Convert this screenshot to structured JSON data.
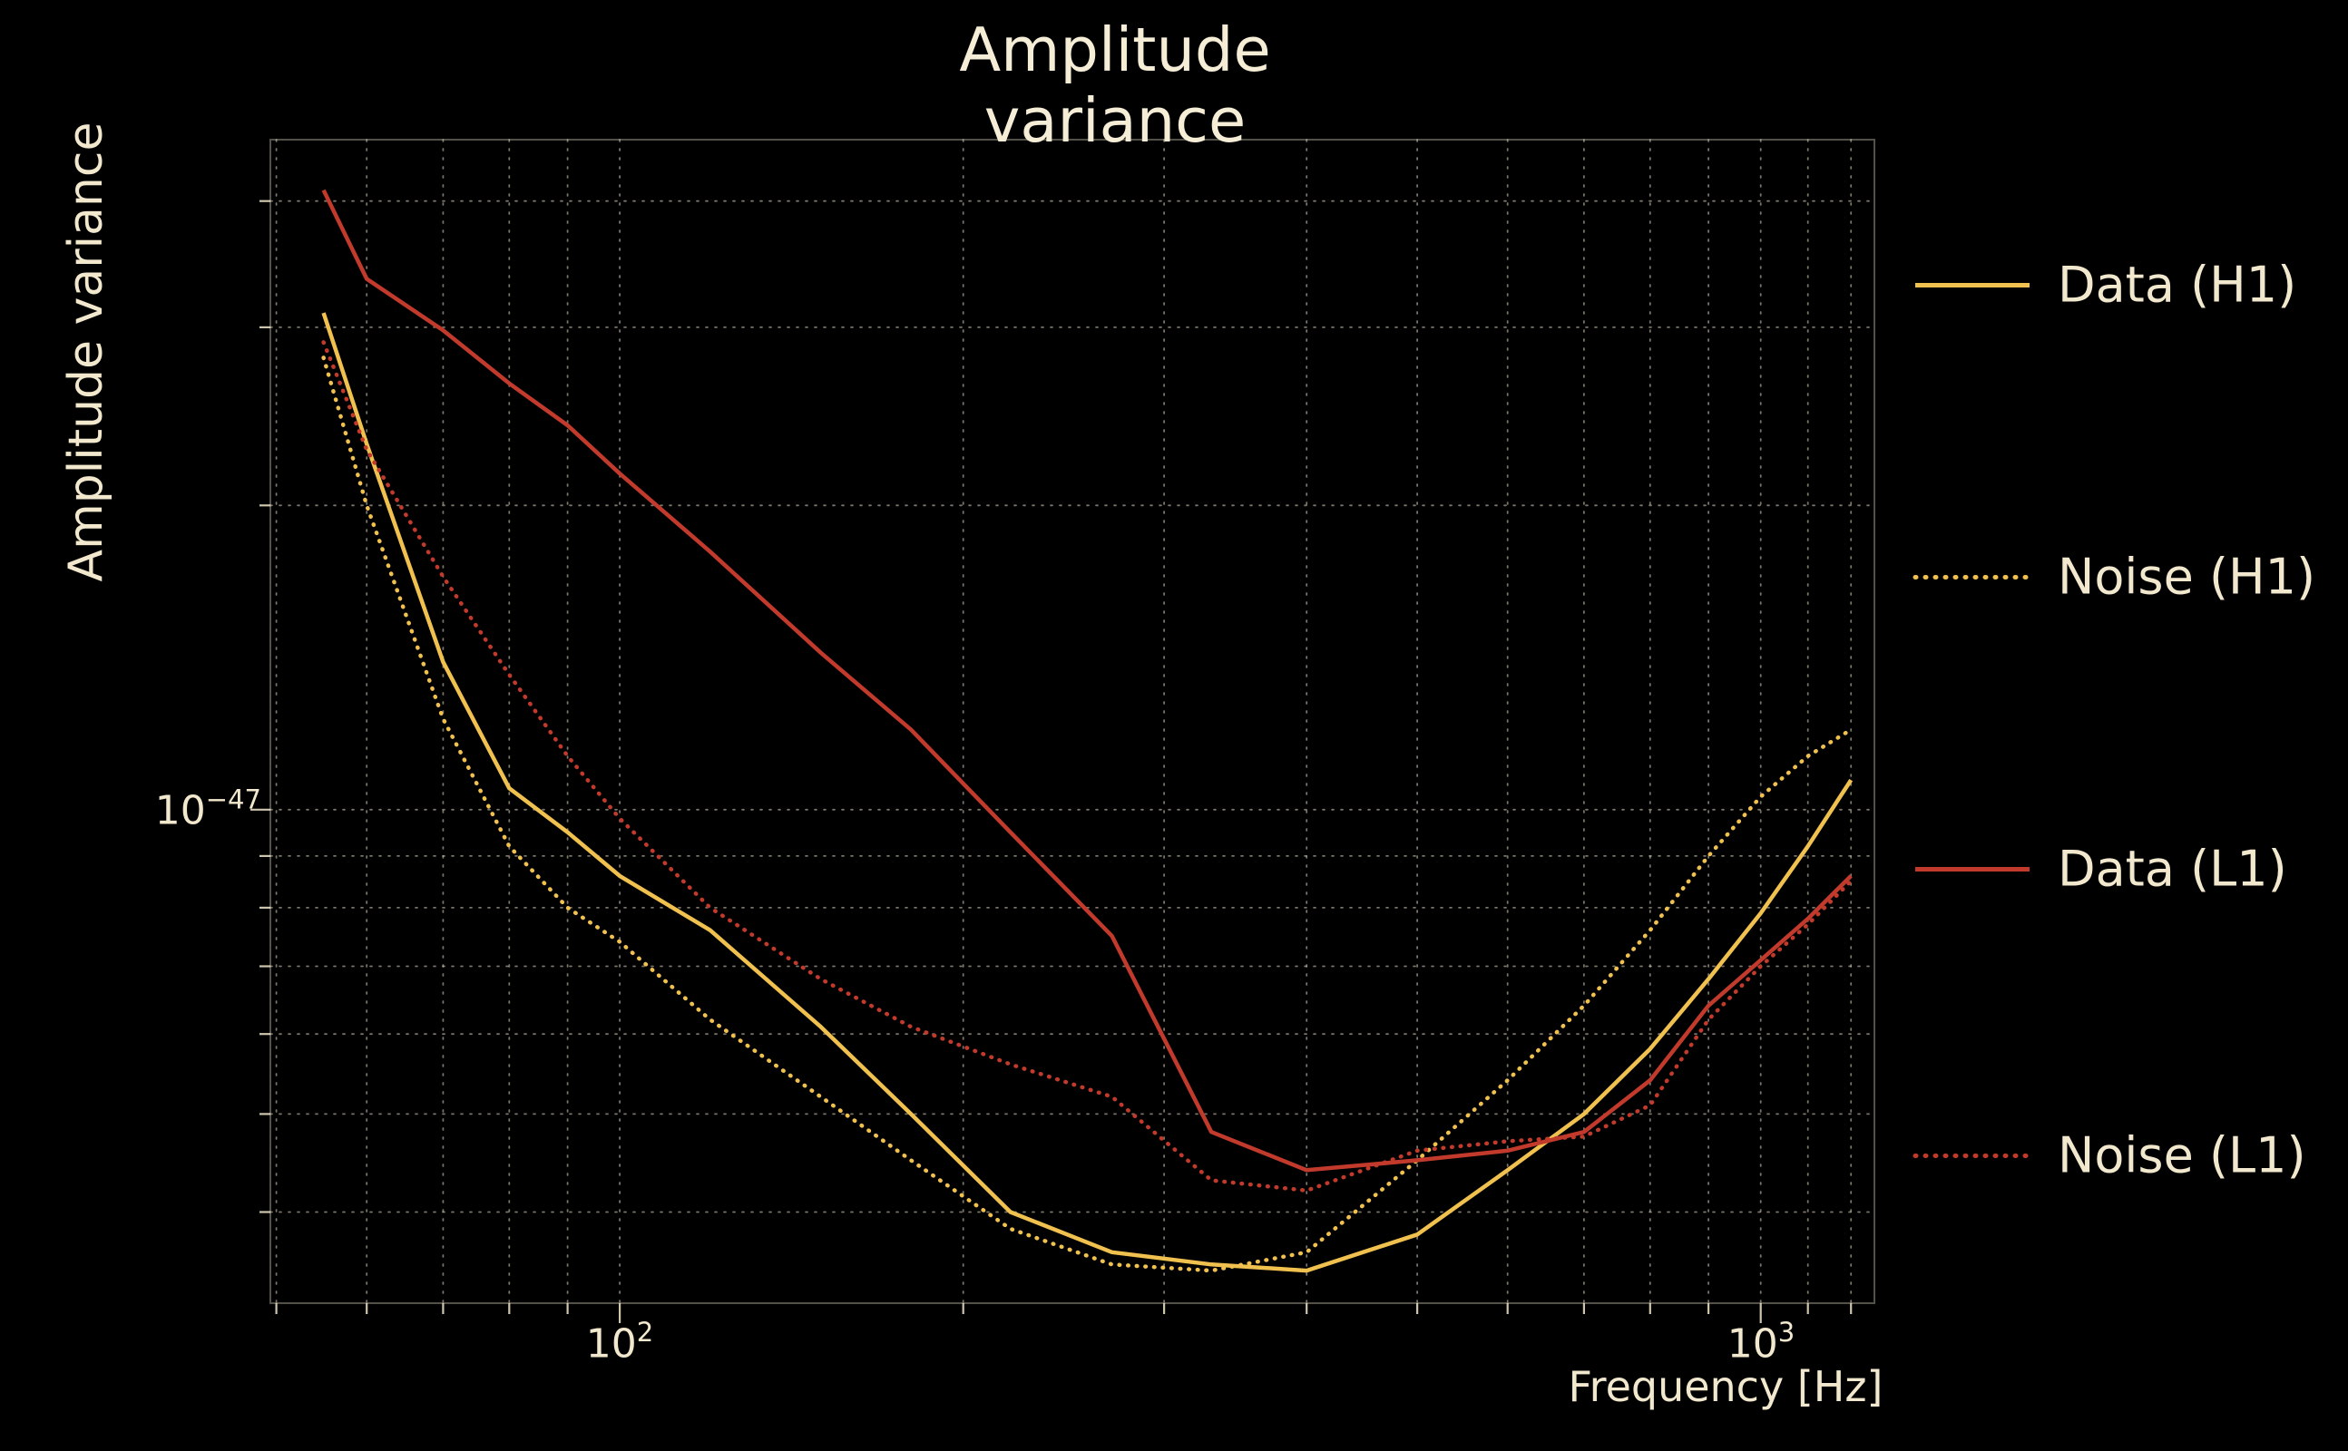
{
  "chart": {
    "title": "Amplitude variance",
    "xlabel": "Frequency [Hz]",
    "ylabel": "Amplitude variance"
  },
  "axes": {
    "ytick": {
      "base": "10",
      "exp": "−47"
    },
    "xtick_2": {
      "base": "10",
      "exp": "2"
    },
    "xtick_3": {
      "base": "10",
      "exp": "3"
    }
  },
  "legend": {
    "entries": [
      {
        "label": "Data (H1)"
      },
      {
        "label": "Noise (H1)"
      },
      {
        "label": "Data (L1)"
      },
      {
        "label": "Noise (L1)"
      }
    ]
  },
  "colors": {
    "background": "#000000",
    "text": "#f2e8cd",
    "grid": "#f2e8cd",
    "h1_yellow": "#f1c14f",
    "l1_red": "#c23a2b"
  },
  "chart_data": {
    "type": "line",
    "title": "Amplitude variance",
    "xlabel": "Frequency [Hz]",
    "ylabel": "Amplitude variance",
    "xscale": "log",
    "yscale": "log",
    "xlim": [
      49.4,
      1258
    ],
    "ylim": [
      3.25e-48,
      4.6e-47
    ],
    "grid": "dotted",
    "legend_position": "right-outside",
    "x_gridlines": [
      50,
      60,
      70,
      80,
      90,
      100,
      200,
      300,
      400,
      500,
      600,
      700,
      800,
      900,
      1000,
      1100,
      1200
    ],
    "x_major": [
      100,
      1000
    ],
    "y_gridlines": [
      4e-48,
      5e-48,
      6e-48,
      7e-48,
      8e-48,
      9e-48,
      1e-47,
      2e-47,
      3e-47,
      4e-47
    ],
    "y_major": [
      1e-47
    ],
    "x": [
      55,
      60,
      70,
      80,
      90,
      100,
      120,
      150,
      180,
      220,
      270,
      330,
      400,
      500,
      600,
      700,
      800,
      900,
      1000,
      1100,
      1200
    ],
    "series": [
      {
        "name": "Data (H1)",
        "color": "#f1c14f",
        "line": "solid",
        "values": [
          3.1e-47,
          2.3e-47,
          1.4e-47,
          1.05e-47,
          9.5e-48,
          8.6e-48,
          7.6e-48,
          6.1e-48,
          5e-48,
          4e-48,
          3.65e-48,
          3.55e-48,
          3.5e-48,
          3.8e-48,
          4.4e-48,
          5e-48,
          5.8e-48,
          6.8e-48,
          7.9e-48,
          9.2e-48,
          1.07e-47
        ]
      },
      {
        "name": "Noise (H1)",
        "color": "#f1c14f",
        "line": "dotted",
        "values": [
          2.8e-47,
          2e-47,
          1.23e-47,
          9.2e-48,
          8e-48,
          7.4e-48,
          6.2e-48,
          5.2e-48,
          4.5e-48,
          3.85e-48,
          3.55e-48,
          3.5e-48,
          3.65e-48,
          4.5e-48,
          5.4e-48,
          6.4e-48,
          7.6e-48,
          9e-48,
          1.03e-47,
          1.13e-47,
          1.2e-47
        ]
      },
      {
        "name": "Data (L1)",
        "color": "#c23a2b",
        "line": "solid",
        "values": [
          4.1e-47,
          3.35e-47,
          2.98e-47,
          2.64e-47,
          2.4e-47,
          2.15e-47,
          1.8e-47,
          1.43e-47,
          1.2e-47,
          9.5e-48,
          7.5e-48,
          4.8e-48,
          4.4e-48,
          4.5e-48,
          4.6e-48,
          4.8e-48,
          5.4e-48,
          6.4e-48,
          7.1e-48,
          7.8e-48,
          8.6e-48
        ]
      },
      {
        "name": "Noise (L1)",
        "color": "#c23a2b",
        "line": "dotted",
        "values": [
          2.9e-47,
          2.27e-47,
          1.7e-47,
          1.36e-47,
          1.13e-47,
          9.8e-48,
          8e-48,
          6.8e-48,
          6.1e-48,
          5.6e-48,
          5.2e-48,
          4.3e-48,
          4.2e-48,
          4.6e-48,
          4.7e-48,
          4.75e-48,
          5.1e-48,
          6.2e-48,
          7e-48,
          7.7e-48,
          8.5e-48
        ]
      }
    ]
  }
}
